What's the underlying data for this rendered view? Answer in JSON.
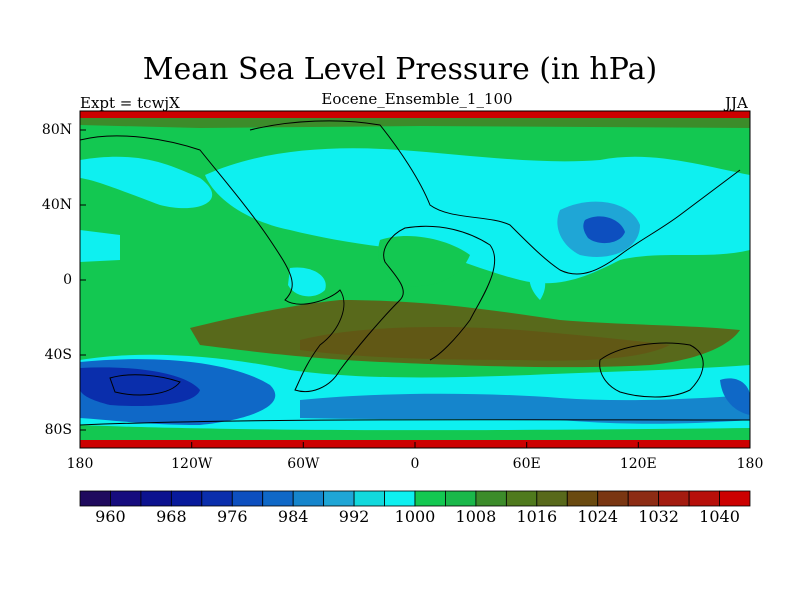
{
  "title": "Mean Sea Level Pressure (in hPa)",
  "subtitle": "Eocene_Ensemble_1_100",
  "left_label": "Expt = tcwjX",
  "right_label": "JJA",
  "x_ticks": [
    "180",
    "120W",
    "60W",
    "0",
    "60E",
    "120E",
    "180"
  ],
  "y_ticks": [
    "80N",
    "40N",
    "0",
    "40S",
    "80S"
  ],
  "colorbar": {
    "labels": [
      "960",
      "968",
      "976",
      "984",
      "992",
      "1000",
      "1008",
      "1016",
      "1024",
      "1032",
      "1040"
    ],
    "colors": [
      "#1f0a5e",
      "#160c7e",
      "#0c128f",
      "#081a9b",
      "#0a2eac",
      "#0d4fbf",
      "#0f68c7",
      "#1585cc",
      "#1fa6d6",
      "#12d9dd",
      "#0ef0f0",
      "#13c851",
      "#1ab84a",
      "#3c8c2a",
      "#4f7a1d",
      "#58691b",
      "#6a4a10",
      "#7a3612",
      "#8d2c14",
      "#a41c10",
      "#b70f0a",
      "#cc0000"
    ]
  },
  "map": {
    "background_level": "1008",
    "highs": [
      "1020",
      "1016"
    ],
    "lows": [
      "984",
      "976",
      "996",
      "1000"
    ]
  }
}
